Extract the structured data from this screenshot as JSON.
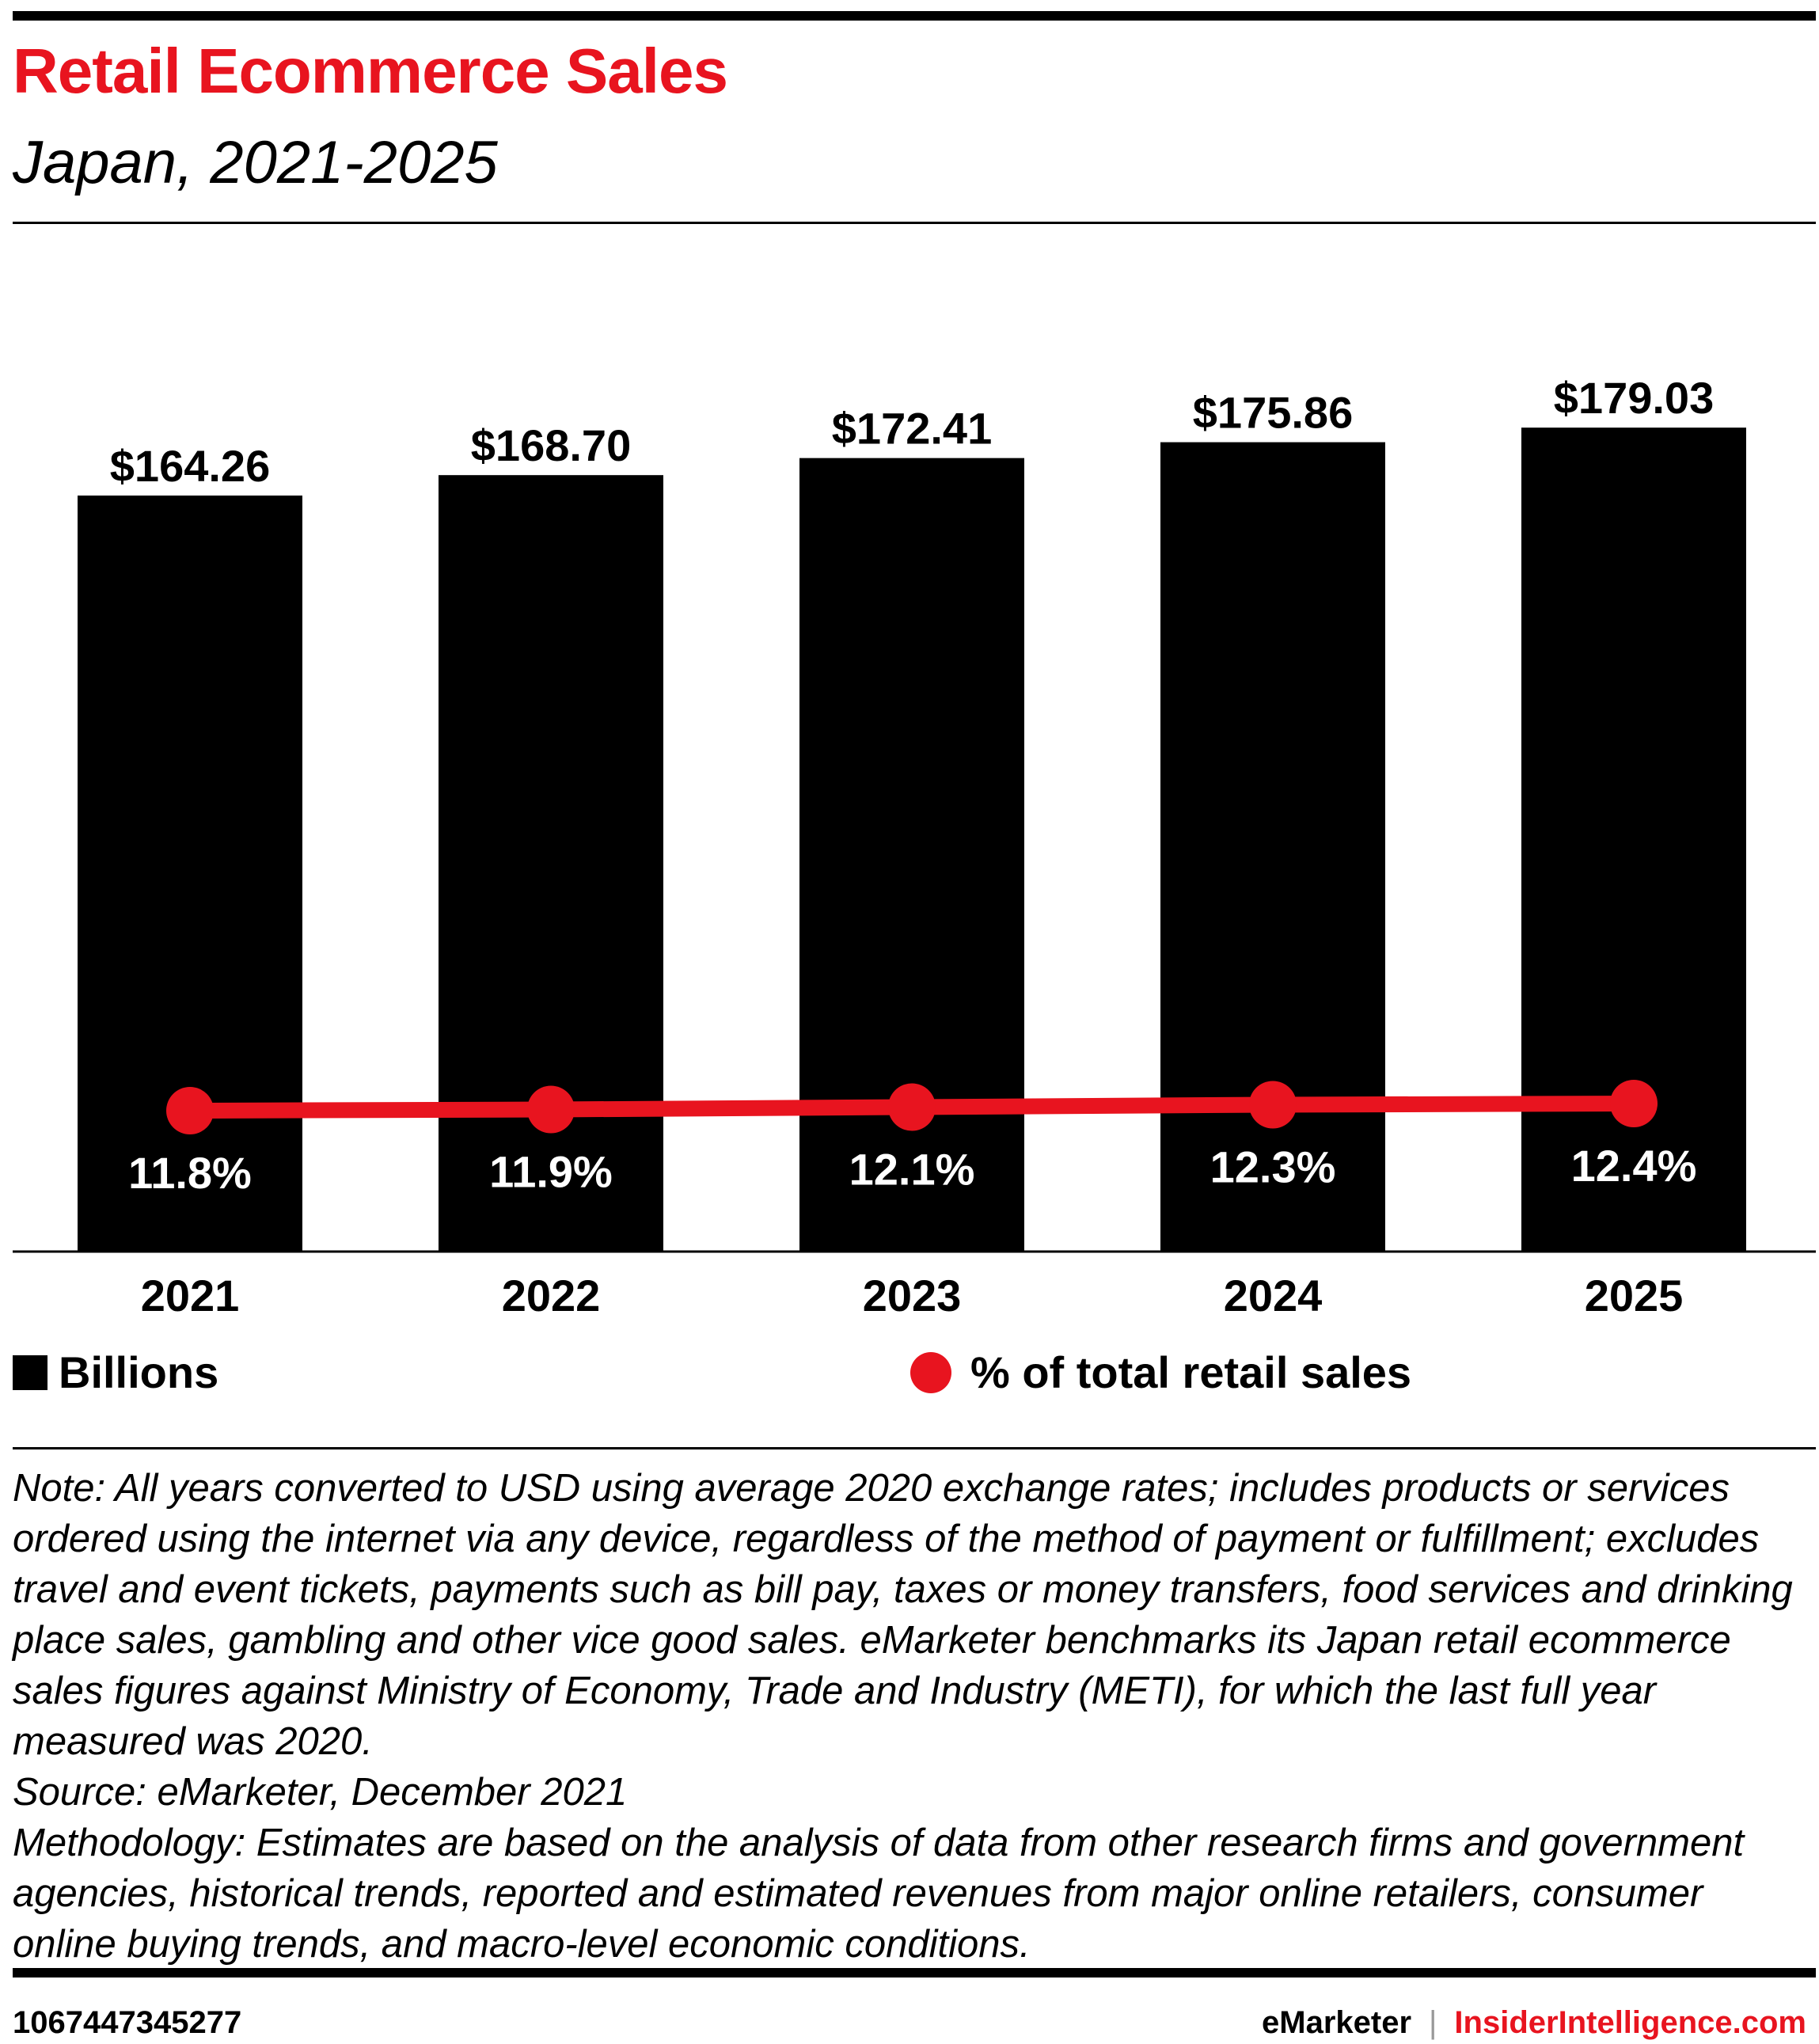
{
  "title": "Retail Ecommerce Sales",
  "subtitle": "Japan, 2021-2025",
  "legend": {
    "bars": "Billions",
    "line": "% of total retail sales"
  },
  "notes": {
    "note": "Note: All years converted to USD using average 2020 exchange rates; includes products or services ordered using the internet via any device, regardless of the method of payment or fulfillment; excludes travel and event tickets, payments such as bill pay, taxes or money transfers, food services and drinking place sales, gambling and other vice good sales. eMarketer benchmarks its Japan retail ecommerce sales figures against Ministry of Economy, Trade and Industry (METI), for which the last full year measured was 2020.",
    "source": "Source: eMarketer, December 2021",
    "methodology": "Methodology: Estimates are based on the analysis of data from other research firms and government agencies, historical trends, reported and estimated revenues from major online retailers, consumer online buying trends, and macro-level economic conditions."
  },
  "footer": {
    "id": "1067447345277",
    "brand": "eMarketer",
    "separator": "|",
    "site": "InsiderIntelligence.com"
  },
  "colors": {
    "bar": "#000000",
    "line": "#e8141f",
    "title": "#e8141f"
  },
  "chart_data": {
    "type": "bar",
    "categories": [
      "2021",
      "2022",
      "2023",
      "2024",
      "2025"
    ],
    "series": [
      {
        "name": "Billions",
        "values": [
          164.26,
          168.7,
          172.41,
          175.86,
          179.03
        ],
        "labels": [
          "$164.26",
          "$168.70",
          "$172.41",
          "$175.86",
          "$179.03"
        ]
      },
      {
        "name": "% of total retail sales",
        "type": "line",
        "values": [
          11.8,
          11.9,
          12.1,
          12.3,
          12.4
        ],
        "labels": [
          "11.8%",
          "11.9%",
          "12.1%",
          "12.3%",
          "12.4%"
        ]
      }
    ],
    "ylim": [
      0,
      198
    ],
    "xlabel": "",
    "ylabel": ""
  }
}
